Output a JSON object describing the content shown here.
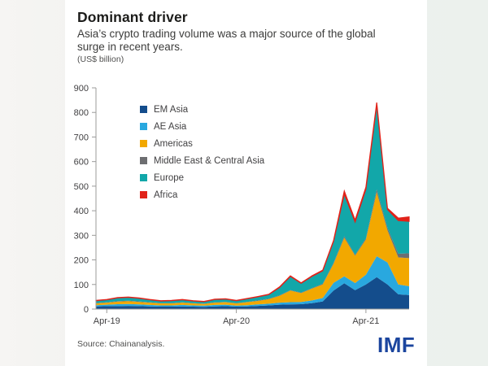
{
  "page": {
    "title": "Dominant driver",
    "subtitle": "Asia’s crypto trading volume was a major source of the global surge in recent years.",
    "unit_note": "(US$ billion)",
    "source": "Source: Chainanalysis.",
    "logo": "IMF"
  },
  "colors": {
    "page_bg": "#eef1ee",
    "card_bg": "#ffffff",
    "logo_blue": "#1b459e",
    "axis": "#9b9b9a",
    "tick_label": "#414042"
  },
  "chart_data": {
    "type": "area",
    "stacked": true,
    "title": "Dominant driver",
    "ylabel": "US$ billion",
    "xlabel": "",
    "ylim": [
      0,
      900
    ],
    "yticks": [
      0,
      100,
      200,
      300,
      400,
      500,
      600,
      700,
      800,
      900
    ],
    "grid": false,
    "legend_position": "inside-top-left",
    "x": [
      "Mar-19",
      "Apr-19",
      "May-19",
      "Jun-19",
      "Jul-19",
      "Aug-19",
      "Sep-19",
      "Oct-19",
      "Nov-19",
      "Dec-19",
      "Jan-20",
      "Feb-20",
      "Mar-20",
      "Apr-20",
      "May-20",
      "Jun-20",
      "Jul-20",
      "Aug-20",
      "Sep-20",
      "Oct-20",
      "Nov-20",
      "Dec-20",
      "Jan-21",
      "Feb-21",
      "Mar-21",
      "Apr-21",
      "May-21",
      "Jun-21",
      "Jul-21",
      "Aug-21"
    ],
    "xticks": [
      "Apr-19",
      "Apr-20",
      "Apr-21"
    ],
    "series": [
      {
        "name": "EM Asia",
        "color": "#144d8c",
        "values": [
          11,
          12,
          12,
          13,
          12,
          11,
          10,
          10,
          11,
          10,
          9,
          11,
          12,
          10,
          11,
          13,
          15,
          18,
          19,
          20,
          24,
          31,
          75,
          105,
          77,
          100,
          130,
          100,
          60,
          57
        ]
      },
      {
        "name": "AE Asia",
        "color": "#29a8df",
        "values": [
          5,
          6,
          8,
          8,
          7,
          6,
          5,
          5,
          6,
          5,
          5,
          6,
          6,
          4,
          5,
          6,
          7,
          8,
          9,
          9,
          11,
          14,
          32,
          28,
          29,
          40,
          85,
          90,
          40,
          36
        ]
      },
      {
        "name": "Americas",
        "color": "#f2a800",
        "values": [
          7,
          8,
          10,
          11,
          10,
          9,
          8,
          8,
          9,
          8,
          7,
          9,
          10,
          9,
          12,
          14,
          18,
          28,
          47,
          36,
          48,
          55,
          77,
          157,
          111,
          143,
          260,
          130,
          110,
          114
        ]
      },
      {
        "name": "Middle East & Central Asia",
        "color": "#6d6e71",
        "values": [
          1,
          1,
          2,
          2,
          2,
          1,
          1,
          1,
          1,
          1,
          1,
          1,
          1,
          1,
          1,
          2,
          2,
          2,
          2,
          2,
          2,
          3,
          4,
          6,
          4,
          5,
          12,
          10,
          15,
          20
        ]
      },
      {
        "name": "Europe",
        "color": "#12a7a9",
        "values": [
          10,
          11,
          14,
          14,
          13,
          11,
          9,
          10,
          11,
          9,
          8,
          12,
          12,
          10,
          13,
          15,
          17,
          32,
          56,
          38,
          48,
          53,
          88,
          172,
          133,
          200,
          345,
          75,
          135,
          130
        ]
      },
      {
        "name": "Africa",
        "color": "#e12219",
        "values": [
          1,
          1,
          1,
          1,
          1,
          1,
          1,
          1,
          1,
          1,
          1,
          1,
          1,
          1,
          1,
          1,
          1,
          2,
          2,
          2,
          2,
          2,
          3,
          12,
          8,
          8,
          8,
          5,
          10,
          18
        ]
      }
    ]
  }
}
